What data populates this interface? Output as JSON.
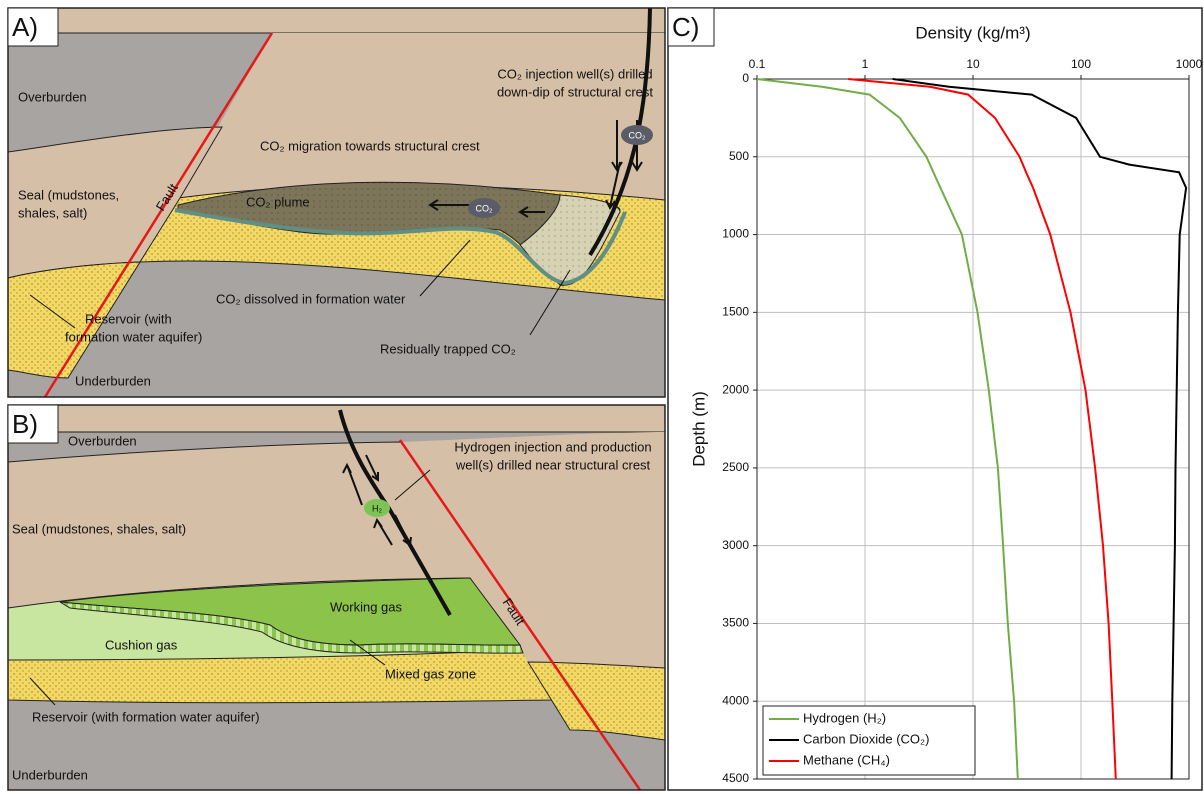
{
  "panel_a": {
    "label": "A)",
    "overburden": "Overburden",
    "seal": [
      "Seal (mudstones,",
      "shales, salt)"
    ],
    "fault": "Fault",
    "plume": "CO₂ plume",
    "migration": "CO₂ migration towards structural crest",
    "injection": [
      "CO₂ injection well(s) drilled",
      "down-dip of structural crest"
    ],
    "bubble": "CO₂",
    "dissolved": "CO₂ dissolved in formation water",
    "residual": "Residually trapped CO₂",
    "reservoir": [
      "Reservoir (with",
      "formation water aquifer)"
    ],
    "underburden": "Underburden"
  },
  "panel_b": {
    "label": "B)",
    "overburden": "Overburden",
    "seal": "Seal (mudstones, shales, salt)",
    "injection": [
      "Hydrogen injection and production",
      "well(s) drilled near structural crest"
    ],
    "bubble": "H₂",
    "fault": "Fault",
    "working": "Working gas",
    "cushion": "Cushion gas",
    "mixed": "Mixed gas zone",
    "reservoir": "Reservoir (with formation water aquifer)",
    "underburden": "Underburden"
  },
  "chart_data": {
    "type": "line",
    "panel_label": "C)",
    "x_label": "Density (kg/m³)",
    "y_label": "Depth (m)",
    "xscale": "log",
    "xlim": [
      0.1,
      1000
    ],
    "xticks": [
      0.1,
      1,
      10,
      100,
      1000
    ],
    "ylim": [
      0,
      4500
    ],
    "yticks": [
      0,
      500,
      1000,
      1500,
      2000,
      2500,
      3000,
      3500,
      4000,
      4500
    ],
    "y_inverted": true,
    "grid": true,
    "legend": "lower left",
    "y": [
      0,
      50,
      100,
      250,
      500,
      550,
      600,
      700,
      1000,
      1500,
      2000,
      2500,
      3000,
      3500,
      4000,
      4500
    ],
    "series": [
      {
        "name": "Hydrogen (H₂)",
        "color": "#70ad47",
        "x": [
          0.1,
          0.4,
          1.1,
          2.1,
          3.7,
          4.0,
          4.3,
          5.0,
          7.9,
          11,
          14,
          17,
          19,
          21,
          24,
          26
        ]
      },
      {
        "name": "Carbon Dioxide (CO₂)",
        "color": "#000000",
        "x": [
          1.8,
          6,
          35,
          90,
          150,
          280,
          810,
          940,
          820,
          790,
          770,
          750,
          740,
          720,
          700,
          690
        ]
      },
      {
        "name": "Methane (CH₄)",
        "color": "#ff0000",
        "x": [
          0.7,
          4,
          9,
          16,
          27,
          29,
          31,
          36,
          52,
          80,
          110,
          135,
          160,
          180,
          195,
          210
        ]
      }
    ]
  }
}
